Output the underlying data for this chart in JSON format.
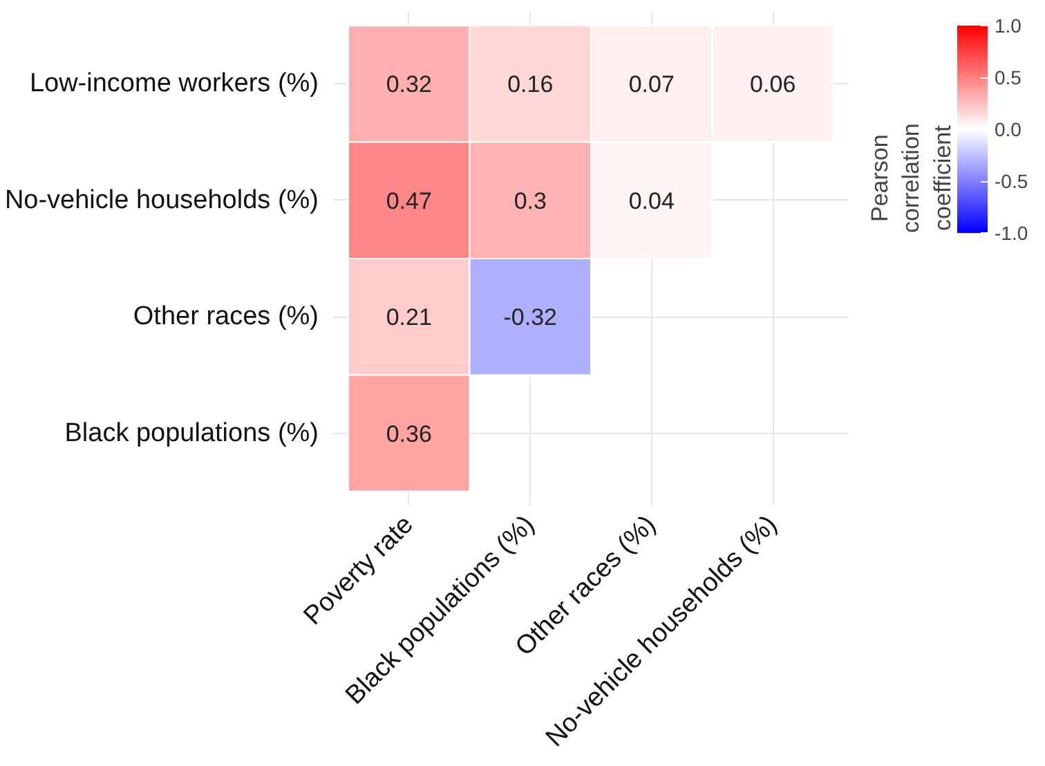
{
  "chart_data": {
    "type": "heatmap",
    "categories": [
      "Poverty rate",
      "Black populations (%)",
      "Other races (%)",
      "No-vehicle households (%)"
    ],
    "y_categories": [
      "Low-income workers (%)",
      "No-vehicle households (%)",
      "Other races (%)",
      "Black populations (%)"
    ],
    "cells": [
      [
        0.32,
        0.16,
        0.07,
        0.06
      ],
      [
        0.47,
        0.3,
        0.04,
        null
      ],
      [
        0.21,
        -0.32,
        null,
        null
      ],
      [
        0.36,
        null,
        null,
        null
      ]
    ],
    "data_labels": true,
    "clabel": "Pearson correlation coefficient",
    "clim": [
      -1,
      1
    ],
    "cticks": [
      {
        "value": -1,
        "label": "-1.0"
      },
      {
        "value": -0.5,
        "label": "-0.5"
      },
      {
        "value": 0,
        "label": "0.0"
      },
      {
        "value": 0.5,
        "label": "0.5"
      },
      {
        "value": 1,
        "label": "1.0"
      }
    ],
    "grid": true
  }
}
